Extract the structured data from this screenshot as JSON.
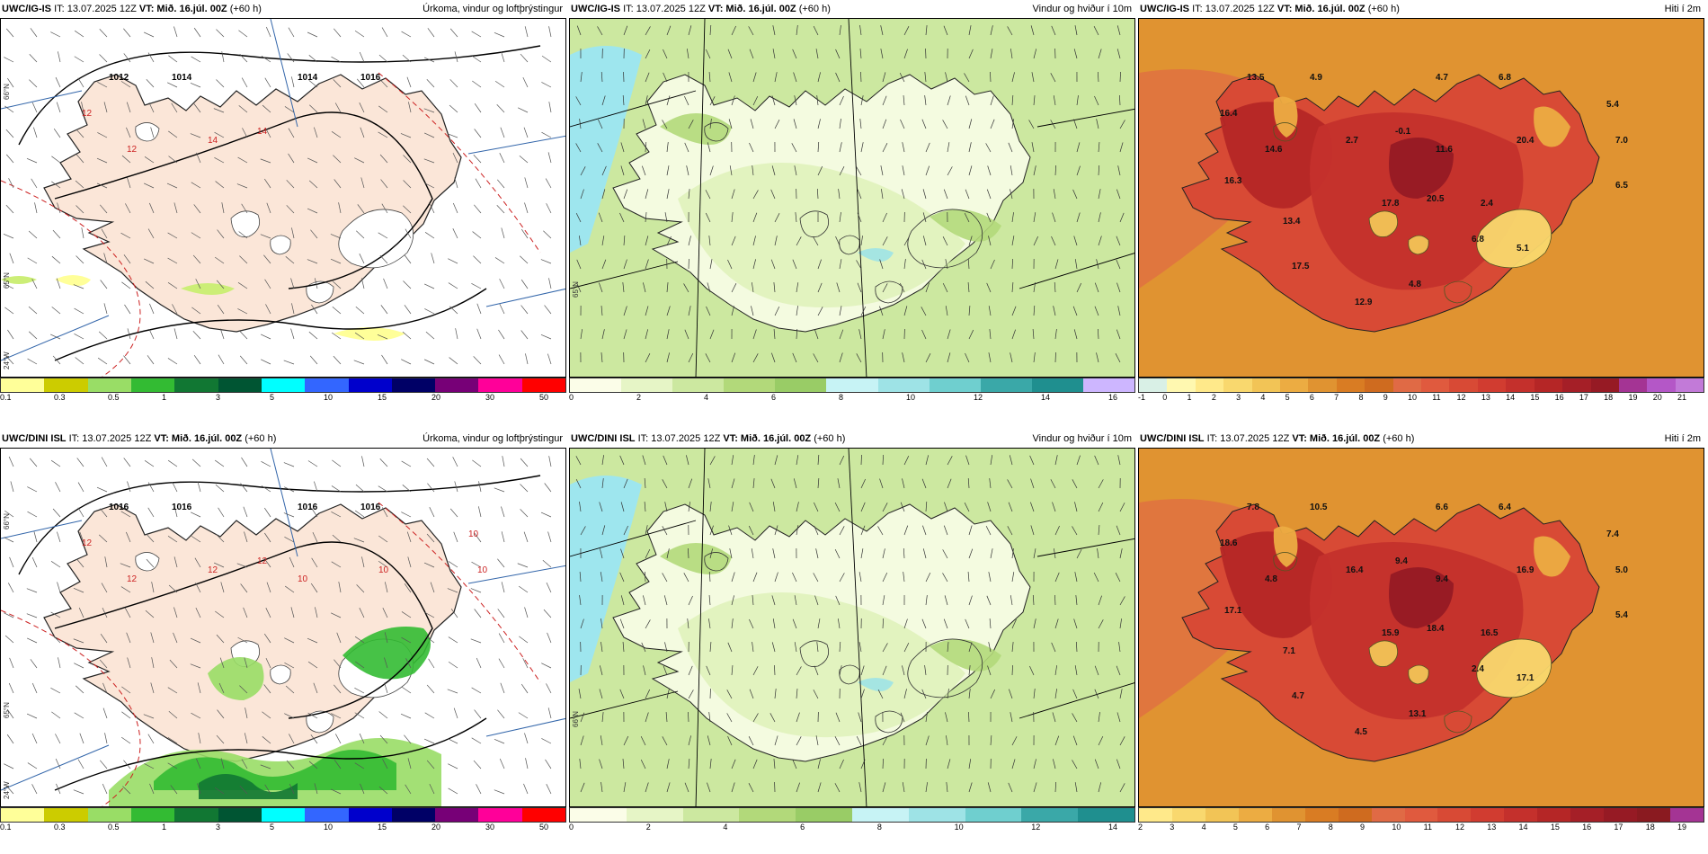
{
  "rows": [
    {
      "model": "UWC/IG-IS",
      "it": "IT: 13.07.2025 12Z",
      "vt": "VT: Mið. 16.júl. 00Z",
      "lead": "(+60 h)",
      "panels": [
        {
          "title": "Úrkoma, vindur og loftþrýstingur",
          "colorbar": {
            "colors": [
              "#ffff99",
              "#cccc00",
              "#99dd66",
              "#33bb33",
              "#117733",
              "#005533",
              "#00ffff",
              "#3366ff",
              "#0000cc",
              "#000066",
              "#770077",
              "#ff0099",
              "#ff0000"
            ],
            "ticks": [
              "0.1",
              "0.3",
              "0.5",
              "1",
              "3",
              "5",
              "10",
              "15",
              "20",
              "30",
              "50"
            ]
          },
          "labels": [
            "1012",
            "1014",
            "1014",
            "1016",
            "12",
            "12",
            "14",
            "14"
          ],
          "axis": [
            "66°N",
            "65°N",
            "24°W"
          ]
        },
        {
          "title": "Vindur og hviður í 10m",
          "colorbar": {
            "colors": [
              "#fbfde8",
              "#e6f5c6",
              "#cce8a0",
              "#b2d97a",
              "#99cc66",
              "#c7f3f5",
              "#9ee3e6",
              "#6fcfcf",
              "#3aa8a8",
              "#1f8f8f",
              "#cdb6ff"
            ],
            "ticks": [
              "0",
              "2",
              "4",
              "6",
              "8",
              "10",
              "12",
              "14",
              "16"
            ]
          },
          "labels": [],
          "axis": [
            "65°N"
          ]
        },
        {
          "title": "Hiti í 2m",
          "colorbar": {
            "colors": [
              "#d9f0e6",
              "#fff8b0",
              "#ffe98a",
              "#f9d86e",
              "#f2c456",
              "#ecac42",
              "#e09331",
              "#d97c23",
              "#cf6b1f",
              "#e06a45",
              "#e05a3e",
              "#d84a35",
              "#d13c30",
              "#c4302c",
              "#b52626",
              "#a51f27",
              "#961a24",
              "#a43494",
              "#b457c7",
              "#c27ad8"
            ],
            "ticks": [
              "-1",
              "0",
              "1",
              "2",
              "3",
              "4",
              "5",
              "6",
              "7",
              "8",
              "9",
              "10",
              "11",
              "12",
              "13",
              "14",
              "15",
              "16",
              "17",
              "18",
              "19",
              "20",
              "21"
            ]
          },
          "labels": [
            "13.5",
            "4.9",
            "4.7",
            "6.8",
            "16.4",
            "14.6",
            "2.7",
            "-0.1",
            "11.6",
            "20.4",
            "5.4",
            "7.0",
            "16.3",
            "17.8",
            "20.5",
            "2.4",
            "6.5",
            "13.4",
            "6.8",
            "5.1",
            "17.5",
            "4.8",
            "12.9"
          ],
          "axis": []
        }
      ]
    },
    {
      "model": "UWC/DINI ISL",
      "it": "IT: 13.07.2025 12Z",
      "vt": "VT: Mið. 16.júl. 00Z",
      "lead": "(+60 h)",
      "panels": [
        {
          "title": "Úrkoma, vindur og loftþrýstingur",
          "colorbar": {
            "colors": [
              "#ffff99",
              "#cccc00",
              "#99dd66",
              "#33bb33",
              "#117733",
              "#005533",
              "#00ffff",
              "#3366ff",
              "#0000cc",
              "#000066",
              "#770077",
              "#ff0099",
              "#ff0000"
            ],
            "ticks": [
              "0.1",
              "0.3",
              "0.5",
              "1",
              "3",
              "5",
              "10",
              "15",
              "20",
              "30",
              "50"
            ]
          },
          "labels": [
            "1016",
            "1016",
            "1016",
            "1016",
            "12",
            "12",
            "12",
            "12",
            "10",
            "10",
            "10",
            "10"
          ],
          "axis": [
            "66°N",
            "65°N",
            "24°W"
          ]
        },
        {
          "title": "Vindur og hviður í 10m",
          "colorbar": {
            "colors": [
              "#fbfde8",
              "#e6f5c6",
              "#cce8a0",
              "#b2d97a",
              "#99cc66",
              "#c7f3f5",
              "#9ee3e6",
              "#6fcfcf",
              "#3aa8a8",
              "#1f8f8f"
            ],
            "ticks": [
              "0",
              "2",
              "4",
              "6",
              "8",
              "10",
              "12",
              "14"
            ]
          },
          "labels": [],
          "axis": [
            "66°N"
          ]
        },
        {
          "title": "Hiti í 2m",
          "colorbar": {
            "colors": [
              "#ffe98a",
              "#f9d86e",
              "#f2c456",
              "#ecac42",
              "#e09331",
              "#d97c23",
              "#cf6b1f",
              "#e06a45",
              "#e05a3e",
              "#d84a35",
              "#d13c30",
              "#c4302c",
              "#b52626",
              "#a51f27",
              "#961a24",
              "#8a1a20",
              "#a43494"
            ],
            "ticks": [
              "2",
              "3",
              "4",
              "5",
              "6",
              "7",
              "8",
              "9",
              "10",
              "11",
              "12",
              "13",
              "14",
              "15",
              "16",
              "17",
              "18",
              "19"
            ]
          },
          "labels": [
            "7.8",
            "10.5",
            "6.6",
            "6.4",
            "18.6",
            "4.8",
            "16.4",
            "9.4",
            "9.4",
            "16.9",
            "7.4",
            "5.0",
            "17.1",
            "15.9",
            "18.4",
            "16.5",
            "5.4",
            "7.1",
            "2.4",
            "17.1",
            "4.7",
            "13.1",
            "4.5"
          ],
          "axis": []
        }
      ]
    }
  ]
}
